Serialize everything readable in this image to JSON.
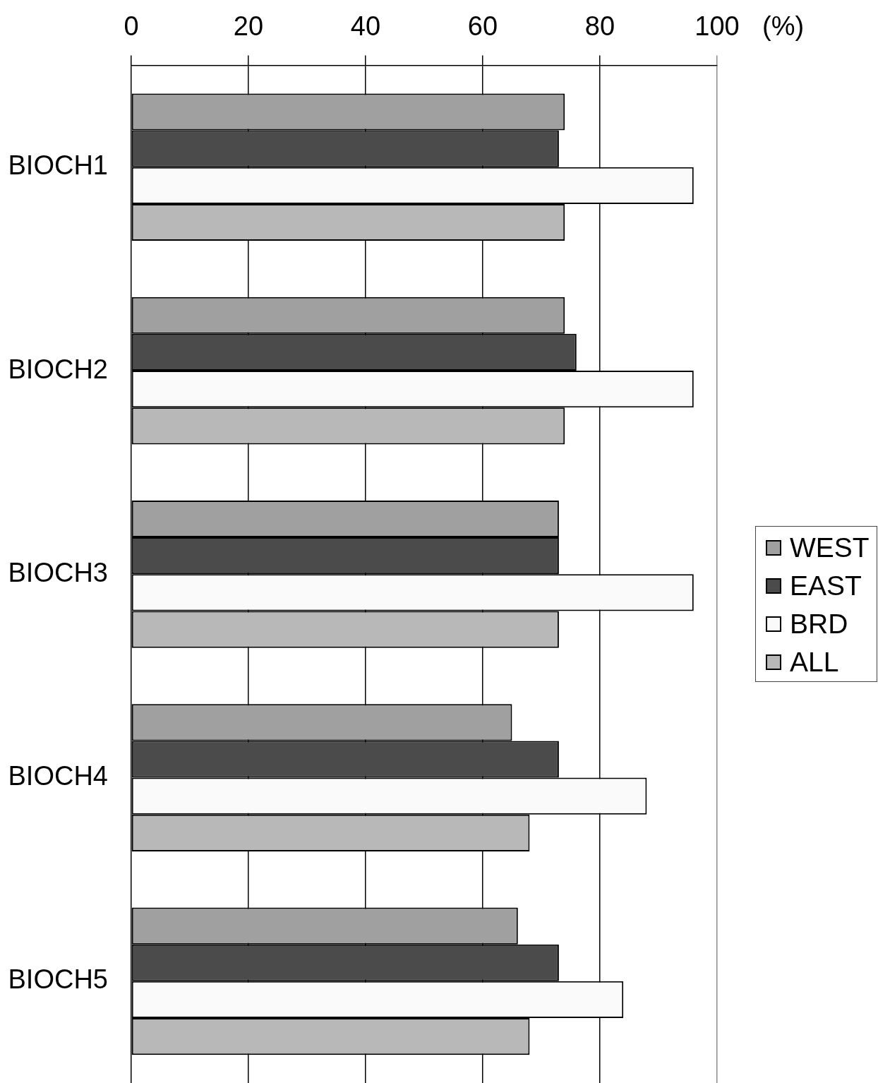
{
  "chart_data": {
    "type": "bar",
    "orientation": "horizontal",
    "xlabel": "(%)",
    "categories": [
      "BIOCH1",
      "BIOCH2",
      "BIOCH3",
      "BIOCH4",
      "BIOCH5"
    ],
    "series": [
      {
        "name": "WEST",
        "color": "#a0a0a0",
        "values": [
          74,
          74,
          73,
          65,
          66
        ]
      },
      {
        "name": "EAST",
        "color": "#4b4b4b",
        "values": [
          73,
          76,
          73,
          73,
          73
        ]
      },
      {
        "name": "BRD",
        "color": "#fafafa",
        "values": [
          96,
          96,
          96,
          88,
          84
        ]
      },
      {
        "name": "ALL",
        "color": "#b8b8b8",
        "values": [
          74,
          74,
          73,
          68,
          68
        ]
      }
    ],
    "xlim": [
      0,
      100
    ],
    "xticks": [
      0,
      20,
      40,
      60,
      80,
      100
    ],
    "grid": "x",
    "legend": "right"
  }
}
